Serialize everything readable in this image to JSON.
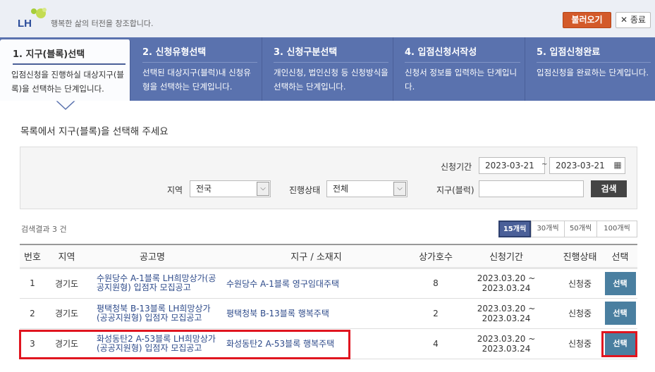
{
  "header": {
    "logo_text": "LH",
    "slogan": "행복한 삶의 터전을 창조합니다.",
    "load_button": "불러오기",
    "close_button": "✕ 종료"
  },
  "steps": [
    {
      "title": "1. 지구(블록)선택",
      "desc": "입점신청을 진행하실 대상지구(블록)을 선택하는 단계입니다.",
      "active": true
    },
    {
      "title": "2. 신청유형선택",
      "desc": "선택된 대상지구(블럭)내 신청유형을 선택하는 단계입니다.",
      "active": false
    },
    {
      "title": "3. 신청구분선택",
      "desc": "개인신청, 법인신청 등 신청방식을 선택하는 단계입니다.",
      "active": false
    },
    {
      "title": "4. 입점신청서작성",
      "desc": "신청서 정보를 입력하는 단계입니다.",
      "active": false
    },
    {
      "title": "5. 입점신청완료",
      "desc": "입점신청을 완료하는 단계입니다.",
      "active": false
    }
  ],
  "subtitle": "목록에서 지구(블록)을 선택해 주세요",
  "search": {
    "period_label": "신청기간",
    "date_from": "2023-03-21",
    "date_sep": "~",
    "date_to": "2023-03-21",
    "region_label": "지역",
    "region_value": "전국",
    "status_label": "진행상태",
    "status_value": "전체",
    "district_label": "지구(블럭)",
    "district_value": "",
    "search_button": "검색"
  },
  "results": {
    "count_text": "검색결과 3 건",
    "page_sizes": [
      "15개씩",
      "30개씩",
      "50개씩",
      "100개씩"
    ],
    "selected_page_size": "15개씩"
  },
  "table": {
    "headers": [
      "번호",
      "지역",
      "공고명",
      "지구 / 소재지",
      "상가호수",
      "신청기간",
      "진행상태",
      "선택"
    ],
    "rows": [
      {
        "no": "1",
        "region": "경기도",
        "title": "수원당수 A-1블록 LH희망상가(공공지원형) 입점자 모집공고",
        "address": "수원당수 A-1블록 영구임대주택",
        "units": "8",
        "period": "2023.03.20 ~ 2023.03.24",
        "status": "신청중",
        "select": "선택"
      },
      {
        "no": "2",
        "region": "경기도",
        "title": "평택청북 B-13블록 LH희망상가(공공지원형) 입점자 모집공고",
        "address": "평택청북 B-13블록 행복주택",
        "units": "2",
        "period": "2023.03.20 ~ 2023.03.24",
        "status": "신청중",
        "select": "선택"
      },
      {
        "no": "3",
        "region": "경기도",
        "title": "화성동탄2 A-53블록 LH희망상가(공공지원형) 입점자 모집공고",
        "address": "화성동탄2 A-53블록 행복주택",
        "units": "4",
        "period": "2023.03.20 ~ 2023.03.24",
        "status": "신청중",
        "select": "선택"
      }
    ]
  },
  "colors": {
    "step_bar": "#5a72ae",
    "load_button": "#d35a2a",
    "select_button": "#4a7fa0",
    "highlight": "#e0151f"
  }
}
